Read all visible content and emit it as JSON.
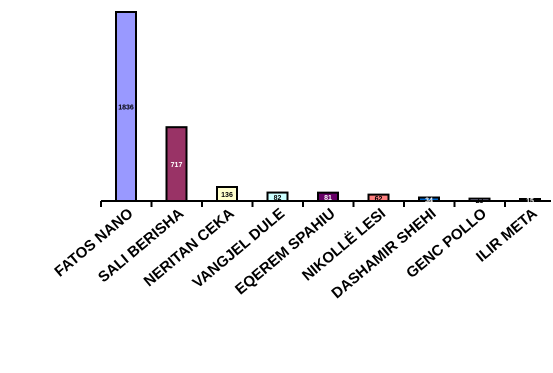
{
  "chart_data": {
    "type": "bar",
    "title": "",
    "xlabel": "",
    "ylabel": "",
    "ylim": [
      0,
      1836
    ],
    "grid": false,
    "legend": "none",
    "categories": [
      "FATOS NANO",
      "SALI BERISHA",
      "NERITAN CEKA",
      "VANGJEL DULE",
      "EQEREM SPAHIU",
      "NIKOLLË LESI",
      "DASHAMIR SHEHI",
      "GENC POLLO",
      "ILIR META"
    ],
    "values": [
      1836,
      717,
      136,
      82,
      81,
      62,
      34,
      23,
      15
    ],
    "data_labels": [
      "1836",
      "717",
      "136",
      "82",
      "81",
      "62",
      "34",
      "23",
      "15"
    ],
    "colors": [
      "#9999ff",
      "#993366",
      "#ffffcc",
      "#ccffff",
      "#660066",
      "#ff8080",
      "#0066cc",
      "#ccccff",
      "#000080"
    ],
    "label_colors": [
      "#000000",
      "#ffffff",
      "#000000",
      "#000000",
      "#ffffff",
      "#000000",
      "#ffffff",
      "#000000",
      "#ffffff"
    ]
  }
}
